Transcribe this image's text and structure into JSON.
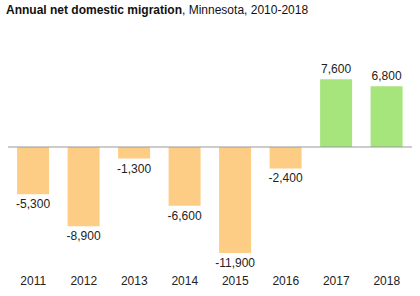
{
  "chart_data": {
    "type": "bar",
    "title": "Annual net domestic migration, Minnesota, 2010-2018",
    "categories": [
      "2011",
      "2012",
      "2013",
      "2014",
      "2015",
      "2016",
      "2017",
      "2018"
    ],
    "values": [
      -5300,
      -8900,
      -1300,
      -6600,
      -11900,
      -2400,
      7600,
      6800
    ],
    "value_labels": [
      "-5,300",
      "-8,900",
      "-1,300",
      "-6,600",
      "-11,900",
      "-2,400",
      "7,600",
      "6,800"
    ],
    "colors": [
      "#fdcc85",
      "#fdcc85",
      "#fdcc85",
      "#fdcc85",
      "#fdcc85",
      "#fdcc85",
      "#a6e57c",
      "#a6e57c"
    ],
    "data_labels": true,
    "tick_labels": "x"
  }
}
